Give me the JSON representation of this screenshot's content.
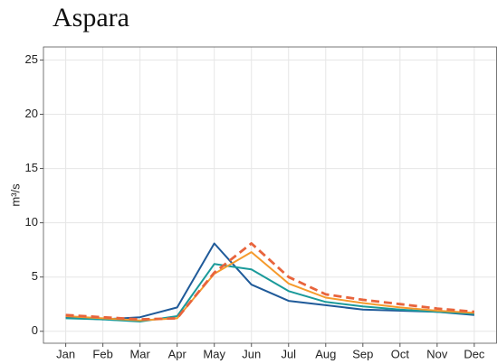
{
  "chart_data": {
    "type": "line",
    "title": "Aspara",
    "y_label": "m³/s",
    "categories": [
      "Jan",
      "Feb",
      "Mar",
      "Apr",
      "May",
      "Jun",
      "Jul",
      "Aug",
      "Sep",
      "Oct",
      "Nov",
      "Dec"
    ],
    "series": [
      {
        "color": "#1f5a99",
        "dashed": false,
        "values": [
          1.3,
          1.1,
          1.3,
          2.2,
          8.1,
          4.3,
          2.8,
          2.4,
          2.0,
          1.9,
          1.8,
          1.5
        ]
      },
      {
        "color": "#1a9a9a",
        "dashed": false,
        "values": [
          1.2,
          1.1,
          0.9,
          1.4,
          6.2,
          5.7,
          3.7,
          2.7,
          2.3,
          2.0,
          1.8,
          1.6
        ]
      },
      {
        "color": "#f59a2c",
        "dashed": false,
        "values": [
          1.4,
          1.2,
          1.0,
          1.2,
          5.3,
          7.3,
          4.4,
          3.1,
          2.6,
          2.2,
          1.9,
          1.7
        ]
      },
      {
        "color": "#e8643c",
        "dashed": true,
        "values": [
          1.5,
          1.3,
          1.1,
          1.2,
          5.4,
          8.1,
          5.0,
          3.4,
          2.9,
          2.5,
          2.1,
          1.8
        ]
      }
    ],
    "ylim": [
      -1.1,
      26.2
    ],
    "yticks": [
      0,
      5,
      10,
      15,
      20,
      25
    ],
    "grid": true
  }
}
